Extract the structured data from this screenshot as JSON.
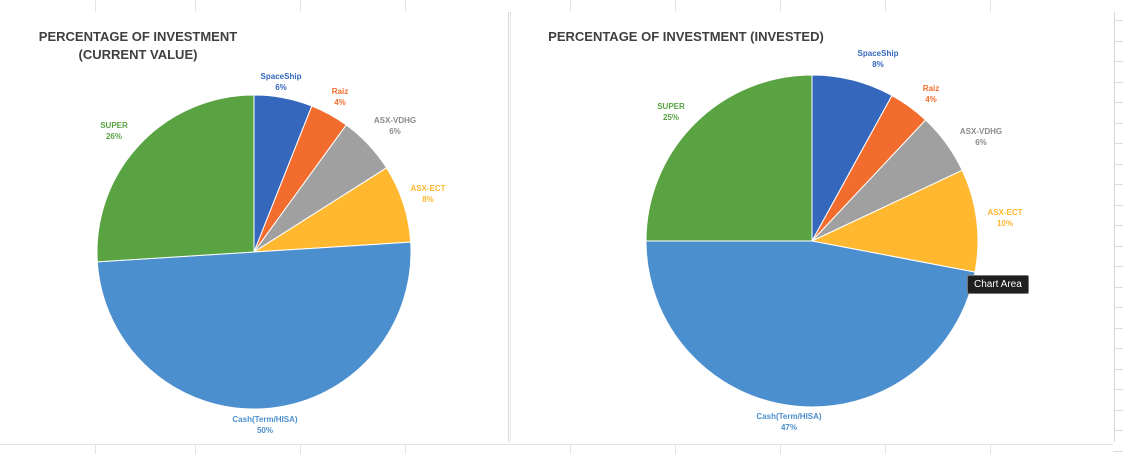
{
  "colors": {
    "spaceship": "#3567bd",
    "raiz": "#f26d2d",
    "asx_vdhg": "#a0a0a0",
    "asx_ect": "#ffb830",
    "cash": "#4c8fcf",
    "super": "#5aa343"
  },
  "tooltip": {
    "text": "Chart Area"
  },
  "chart_data": [
    {
      "type": "pie",
      "title": "PERCENTAGE OF INVESTMENT (CURRENT VALUE)",
      "title_lines": [
        "PERCENTAGE OF INVESTMENT",
        "(CURRENT VALUE)"
      ],
      "labels": [
        "SpaceShip",
        "Raiz",
        "ASX-VDHG",
        "ASX-ECT",
        "Cash(Term/HISA)",
        "SUPER"
      ],
      "values": [
        6,
        4,
        6,
        8,
        50,
        26
      ],
      "value_labels": [
        "6%",
        "4%",
        "6%",
        "8%",
        "50%",
        "26%"
      ],
      "color_keys": [
        "spaceship",
        "raiz",
        "asx_vdhg",
        "asx_ect",
        "cash",
        "super"
      ]
    },
    {
      "type": "pie",
      "title": "PERCENTAGE OF INVESTMENT (INVESTED)",
      "title_lines": [
        "PERCENTAGE OF INVESTMENT (INVESTED)"
      ],
      "labels": [
        "SpaceShip",
        "Raiz",
        "ASX-VDHG",
        "ASX-ECT",
        "Cash(Term/HISA)",
        "SUPER"
      ],
      "values": [
        8,
        4,
        6,
        10,
        47,
        25
      ],
      "value_labels": [
        "8%",
        "4%",
        "6%",
        "10%",
        "47%",
        "25%"
      ],
      "color_keys": [
        "spaceship",
        "raiz",
        "asx_vdhg",
        "asx_ect",
        "cash",
        "super"
      ]
    }
  ]
}
